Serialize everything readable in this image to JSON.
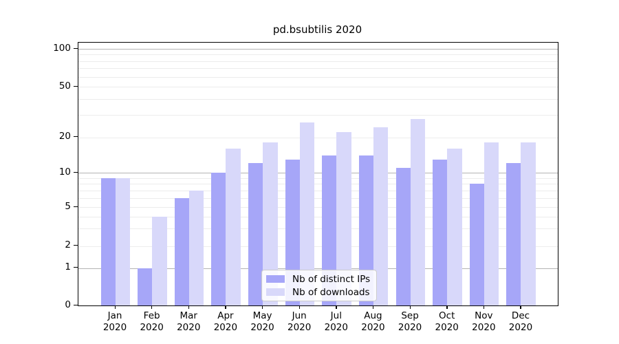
{
  "title": "pd.bsubtilis 2020",
  "chart_data": {
    "type": "bar",
    "title": "pd.bsubtilis 2020",
    "categories": [
      "Jan",
      "Feb",
      "Mar",
      "Apr",
      "May",
      "Jun",
      "Jul",
      "Aug",
      "Sep",
      "Oct",
      "Nov",
      "Dec"
    ],
    "year_label": "2020",
    "series": [
      {
        "name": "Nb of distinct IPs",
        "color": "#a6a6f8",
        "values": [
          9,
          1,
          6,
          10,
          12,
          13,
          14,
          14,
          11,
          13,
          8,
          12
        ]
      },
      {
        "name": "Nb of downloads",
        "color": "#d8d8fa",
        "values": [
          9,
          4,
          7,
          16,
          18,
          26,
          22,
          24,
          28,
          16,
          18,
          18
        ]
      }
    ],
    "xlabel": "",
    "ylabel": "",
    "yscale": "log-like with linear zero region",
    "ylim": [
      0,
      112
    ],
    "y_tick_values": [
      100,
      50,
      20,
      10,
      5,
      2,
      1,
      0
    ],
    "y_tick_labels": [
      "100",
      "50",
      "20",
      "10",
      "5",
      "2",
      "1",
      "0"
    ],
    "grid": "horizontal major and minor",
    "legend_position": "lower center inside plot"
  },
  "colors": {
    "bar_distinct_ips": "#a6a6f8",
    "bar_downloads": "#d8d8fa",
    "grid_major": "#b3b3b3",
    "grid_minor": "#ececec",
    "axis": "#000000",
    "legend_border": "#cccccc"
  }
}
